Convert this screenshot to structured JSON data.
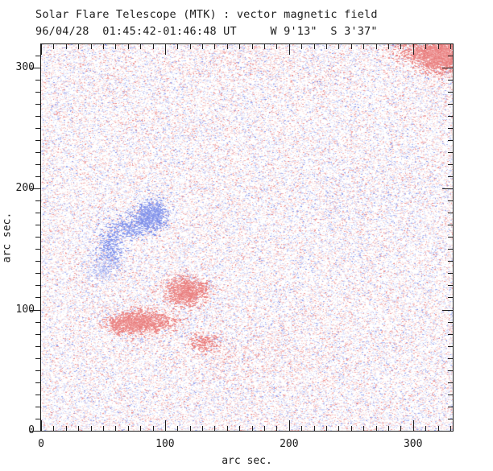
{
  "chart_data": {
    "type": "heatmap",
    "title": "Solar Flare Telescope (MTK) : vector magnetic field",
    "subtitle": "96/04/28  01:45:42-01:46:48 UT     W 9'13\"  S 3'37\"",
    "xlabel": "arc sec.",
    "ylabel": "arc sec.",
    "xlim": [
      0,
      332
    ],
    "ylim": [
      0,
      319
    ],
    "x_major_ticks": [
      0,
      100,
      200,
      300
    ],
    "y_major_ticks": [
      0,
      100,
      200,
      300
    ],
    "x_minor_step": 10,
    "y_minor_step": 10,
    "grid": false,
    "legend": "none",
    "background_color": "#ffffff",
    "axis_color": "#1c1c1c",
    "positive_color": "#ee9494",
    "negative_color": "#94a2ee",
    "palette_red": [
      "#fbe4e4",
      "#f8d0d0",
      "#f3b2b2",
      "#ee9494",
      "#e98080"
    ],
    "palette_blue": [
      "#e4e7fb",
      "#d0d6f8",
      "#b2bcf3",
      "#94a2ee",
      "#8091ea"
    ],
    "noise": {
      "seed": 42424242,
      "count": 78000,
      "red_fraction": 0.53
    },
    "features": [
      {
        "name": "dense-positive-patch-top-right-corner",
        "polarity": "positive",
        "x": 323,
        "y": 309,
        "sx": 10,
        "sy": 7,
        "count": 2600,
        "tier": "strong"
      },
      {
        "name": "positive-extension-top-right",
        "polarity": "positive",
        "x": 308,
        "y": 313,
        "sx": 14,
        "sy": 5,
        "count": 700,
        "tier": "strong"
      },
      {
        "name": "negative-patch-main",
        "polarity": "negative",
        "x": 88,
        "y": 178,
        "sx": 7,
        "sy": 6,
        "count": 1100,
        "tier": "strong"
      },
      {
        "name": "negative-wisp-a",
        "polarity": "negative",
        "x": 71,
        "y": 166,
        "sx": 9,
        "sy": 5,
        "count": 380,
        "tier": "strong"
      },
      {
        "name": "negative-wisp-b",
        "polarity": "negative",
        "x": 55,
        "y": 149,
        "sx": 6,
        "sy": 9,
        "count": 450,
        "tier": "strong"
      },
      {
        "name": "negative-wisp-c",
        "polarity": "negative",
        "x": 50,
        "y": 134,
        "sx": 7,
        "sy": 7,
        "count": 300,
        "tier": "light"
      },
      {
        "name": "positive-blob-center",
        "polarity": "positive",
        "x": 116,
        "y": 115,
        "sx": 8,
        "sy": 6,
        "count": 1400,
        "tier": "strong"
      },
      {
        "name": "positive-elongated-patch",
        "polarity": "positive",
        "x": 82,
        "y": 90,
        "sx": 13,
        "sy": 5,
        "count": 1500,
        "tier": "strong"
      },
      {
        "name": "positive-patch-tail",
        "polarity": "positive",
        "x": 67,
        "y": 87,
        "sx": 8,
        "sy": 4,
        "count": 420,
        "tier": "strong"
      },
      {
        "name": "positive-wisp-small",
        "polarity": "positive",
        "x": 131,
        "y": 73,
        "sx": 6,
        "sy": 4,
        "count": 300,
        "tier": "strong"
      },
      {
        "name": "faint-positive-band-bottom",
        "polarity": "positive",
        "x": 175,
        "y": 60,
        "sx": 40,
        "sy": 16,
        "count": 700,
        "tier": "light"
      },
      {
        "name": "faint-positive-band-top",
        "polarity": "positive",
        "x": 162,
        "y": 305,
        "sx": 60,
        "sy": 10,
        "count": 500,
        "tier": "light"
      },
      {
        "name": "faint-negative-region-right",
        "polarity": "negative",
        "x": 259,
        "y": 189,
        "sx": 30,
        "sy": 20,
        "count": 400,
        "tier": "light"
      }
    ]
  }
}
